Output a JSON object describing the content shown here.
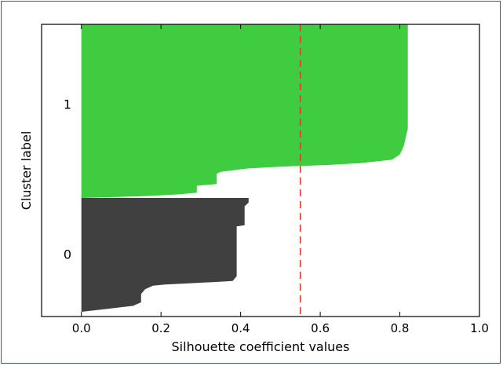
{
  "chart_data": {
    "type": "area",
    "xlabel": "Silhouette coefficient values",
    "ylabel": "Cluster label",
    "xlim": [
      -0.1,
      1.0
    ],
    "xticks": [
      0.0,
      0.2,
      0.4,
      0.6,
      0.8,
      1.0
    ],
    "xtick_labels": [
      "0.0",
      "0.2",
      "0.4",
      "0.6",
      "0.8",
      "1.0"
    ],
    "average_silhouette": 0.55,
    "average_line_style": "dashed",
    "clusters": [
      {
        "label": "0",
        "color": "#404040",
        "profile": [
          [
            0.0,
            0.0
          ],
          [
            0.0,
            0.04
          ],
          [
            0.08,
            0.07
          ],
          [
            0.13,
            0.09
          ],
          [
            0.15,
            0.12
          ],
          [
            0.15,
            0.19
          ],
          [
            0.16,
            0.23
          ],
          [
            0.18,
            0.26
          ],
          [
            0.21,
            0.27
          ],
          [
            0.27,
            0.28
          ],
          [
            0.33,
            0.29
          ],
          [
            0.38,
            0.3
          ],
          [
            0.39,
            0.34
          ],
          [
            0.39,
            0.5
          ],
          [
            0.39,
            0.56
          ],
          [
            0.39,
            0.57
          ],
          [
            0.39,
            0.76
          ],
          [
            0.41,
            0.77
          ],
          [
            0.41,
            0.93
          ],
          [
            0.42,
            0.96
          ],
          [
            0.42,
            1.0
          ]
        ]
      },
      {
        "label": "1",
        "color": "#3fcc40",
        "profile": [
          [
            0.0,
            0.0
          ],
          [
            0.16,
            0.01
          ],
          [
            0.24,
            0.02
          ],
          [
            0.29,
            0.03
          ],
          [
            0.29,
            0.07
          ],
          [
            0.34,
            0.08
          ],
          [
            0.34,
            0.14
          ],
          [
            0.35,
            0.15
          ],
          [
            0.42,
            0.17
          ],
          [
            0.5,
            0.18
          ],
          [
            0.62,
            0.19
          ],
          [
            0.7,
            0.2
          ],
          [
            0.78,
            0.22
          ],
          [
            0.8,
            0.25
          ],
          [
            0.81,
            0.3
          ],
          [
            0.82,
            0.4
          ],
          [
            0.82,
            0.6
          ],
          [
            0.82,
            1.0
          ]
        ]
      }
    ]
  }
}
